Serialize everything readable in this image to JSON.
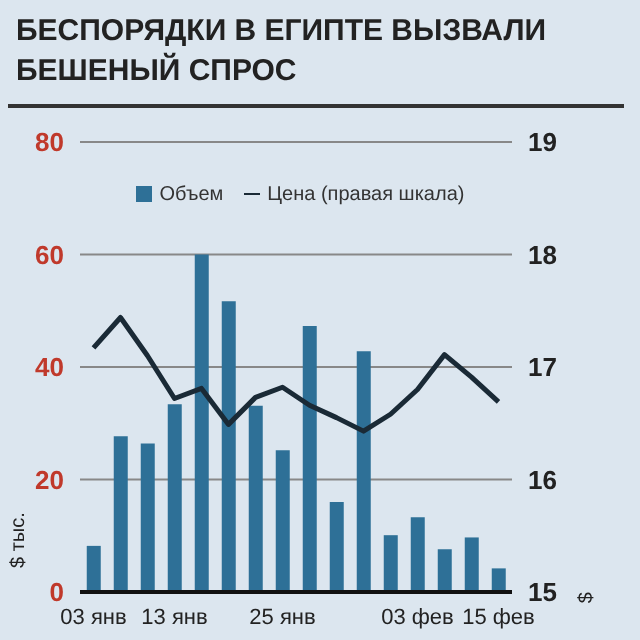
{
  "chart_data": {
    "type": "bar",
    "title": "БЕСПОРЯДКИ В ЕГИПТЕ ВЫЗВАЛИ БЕШЕНЫЙ СПРОС",
    "ylabel": "$ тыс.",
    "y2label": "$",
    "categories": [
      "03 янв",
      null,
      null,
      "13 янв",
      null,
      null,
      null,
      "25 янв",
      null,
      null,
      null,
      null,
      "03 фев",
      null,
      null,
      "15 фев"
    ],
    "series": [
      {
        "name": "Объем",
        "color": "#2e7097",
        "values": [
          8.2,
          27.7,
          26.4,
          33.4,
          60,
          51.7,
          33.1,
          25.2,
          47.3,
          16,
          42.8,
          10.1,
          13.3,
          7.6,
          9.7,
          4.2
        ]
      },
      {
        "name": "Цена (правая шкала)",
        "type": "line",
        "axis": "y2",
        "color": "#1a2a36",
        "values": [
          17.17,
          17.44,
          17.1,
          16.72,
          16.81,
          16.49,
          16.73,
          16.82,
          16.66,
          16.55,
          16.43,
          16.58,
          16.8,
          17.11,
          16.91,
          16.69
        ]
      }
    ],
    "ylim": [
      0,
      80
    ],
    "yticks": [
      0,
      20,
      40,
      60,
      80
    ],
    "y2lim": [
      15,
      19
    ],
    "y2ticks": [
      15,
      16,
      17,
      18,
      19
    ],
    "grid": "y",
    "legend": "top",
    "marker": "none",
    "line_style": "solid"
  }
}
